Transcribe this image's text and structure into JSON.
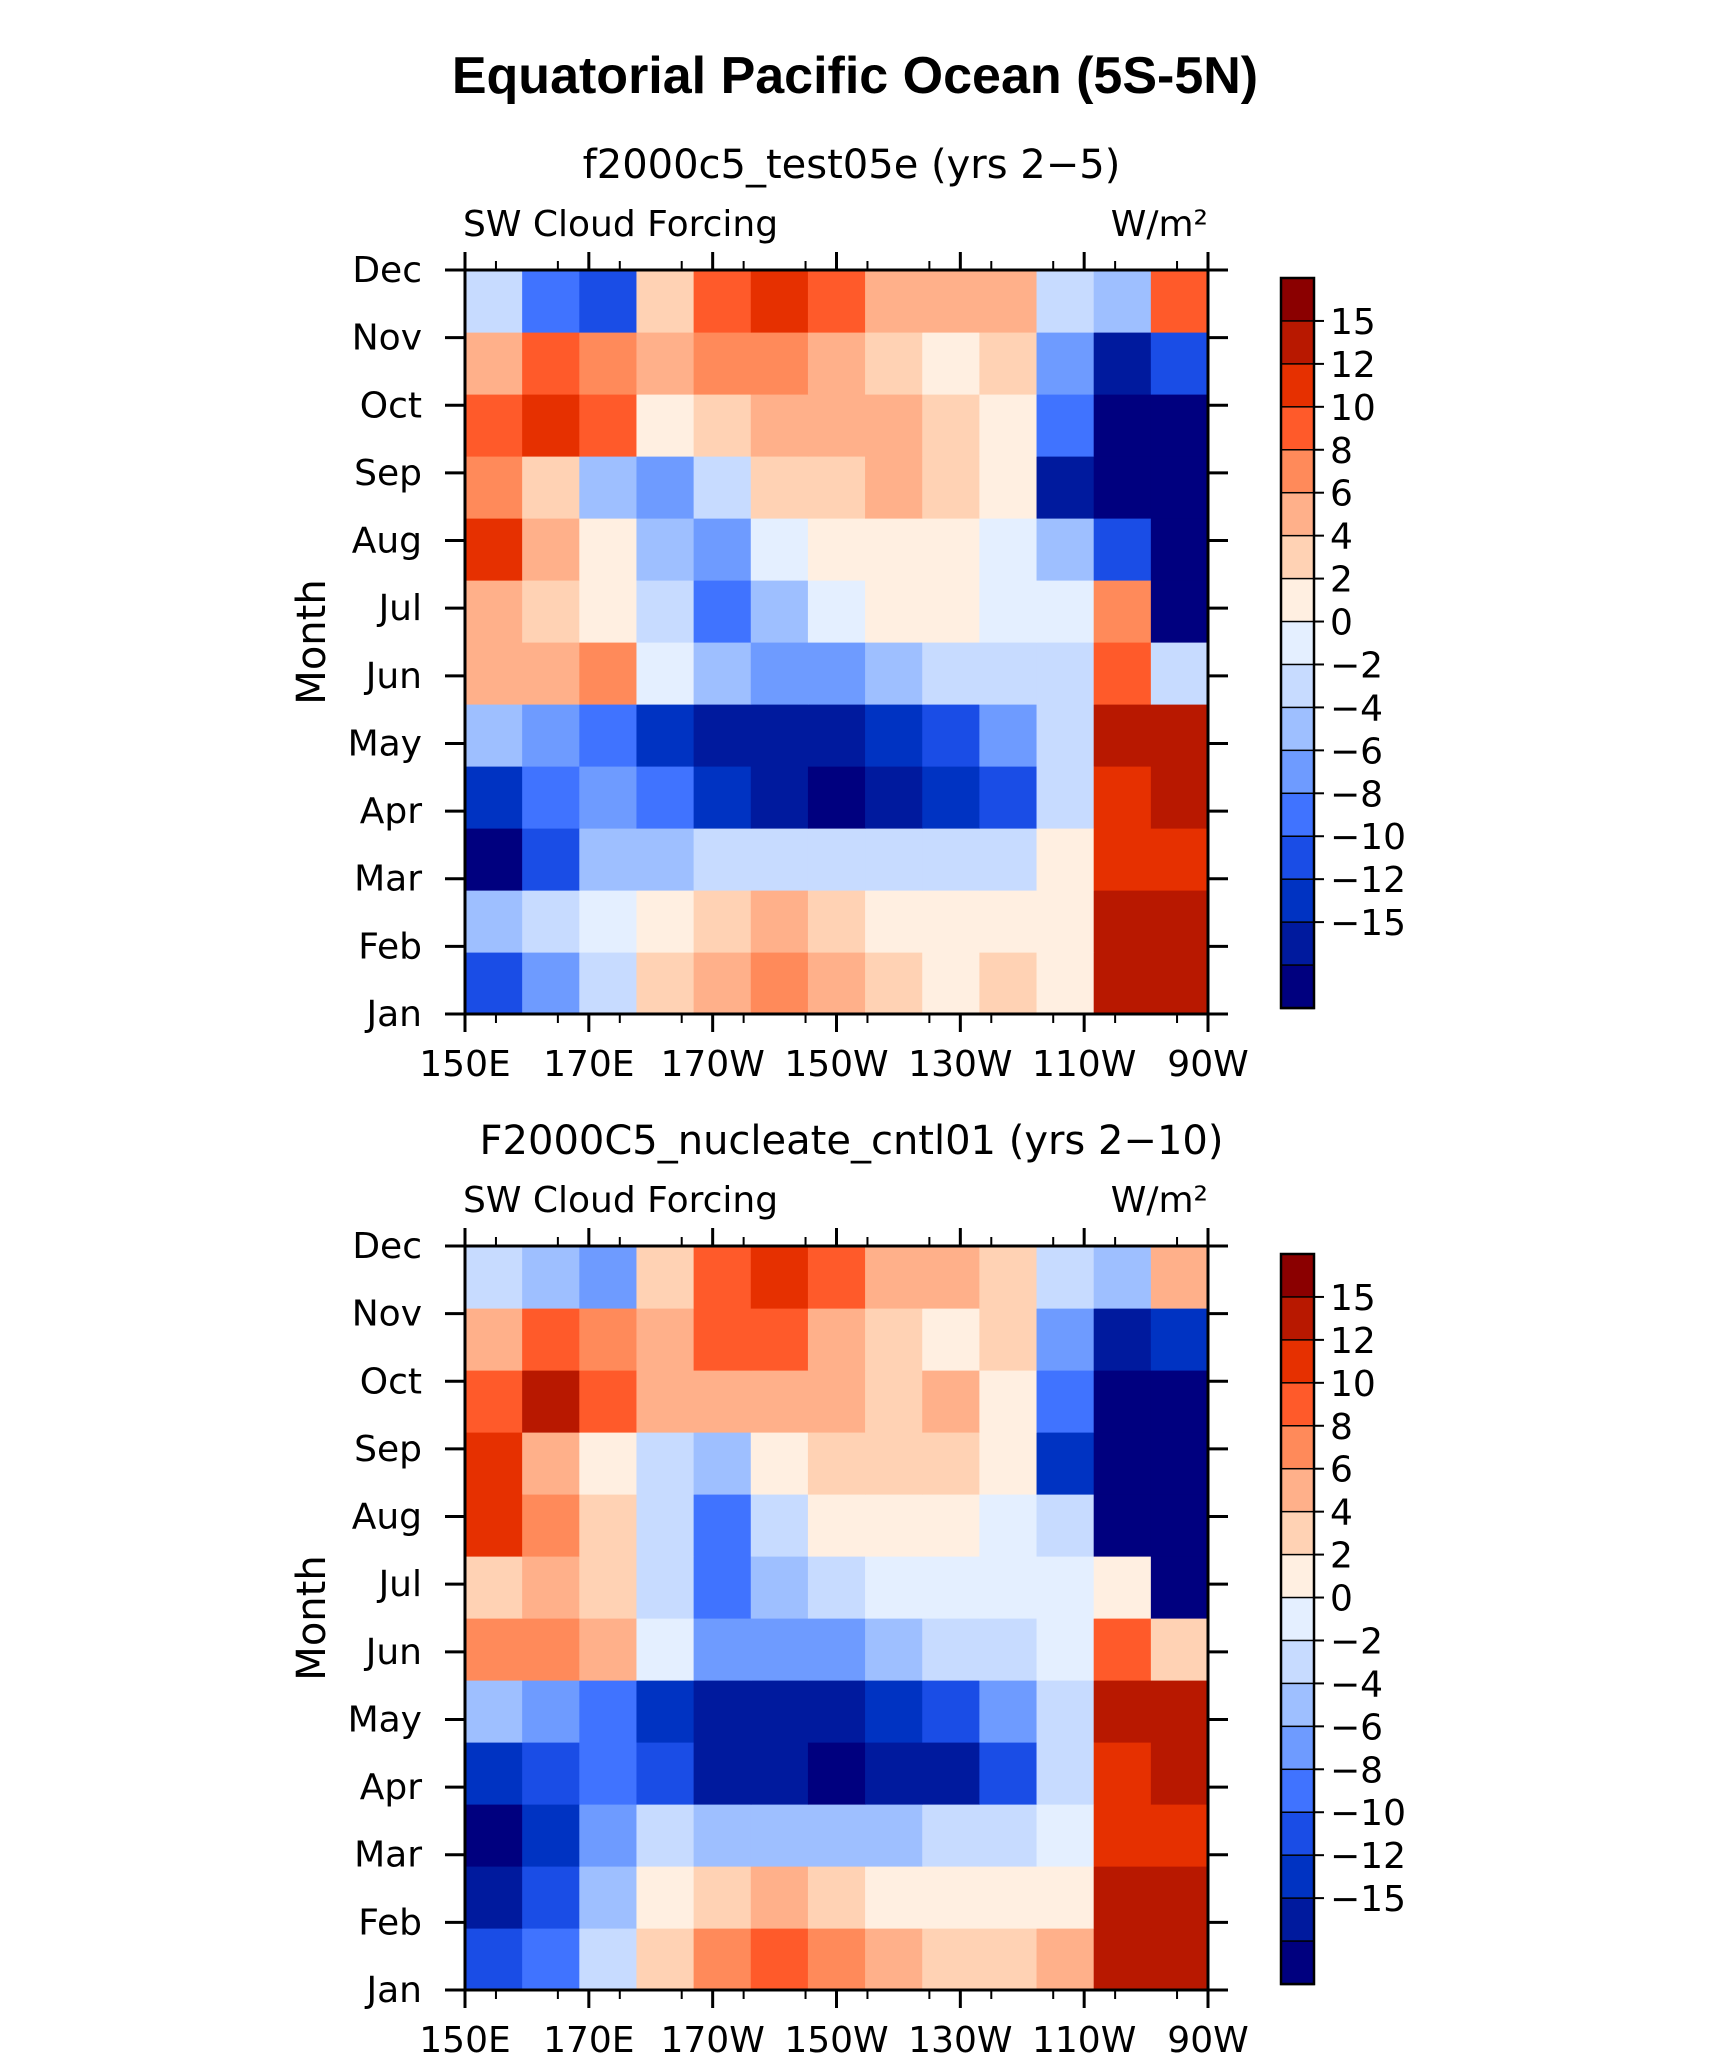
{
  "title": "Equatorial Pacific Ocean (5S-5N)",
  "colors": {
    "levels": [
      "#00007f",
      "#001a9e",
      "#0033c2",
      "#1a4de6",
      "#4073ff",
      "#6e9bff",
      "#9ebfff",
      "#c7dbff",
      "#e4efff",
      "#ffefe1",
      "#ffd2b4",
      "#ffb08a",
      "#ff8a5a",
      "#ff5a2a",
      "#e63000",
      "#b81800",
      "#8b0000"
    ]
  },
  "chart_data": [
    {
      "type": "heatmap",
      "title": "f2000c5_test05e (yrs 2−5)",
      "left_label": "SW Cloud Forcing",
      "right_label": "W/m²",
      "ylabel": "Month",
      "x_ticks": [
        "150E",
        "170E",
        "170W",
        "150W",
        "130W",
        "110W",
        "90W"
      ],
      "y_ticks": [
        "Jan",
        "Feb",
        "Mar",
        "Apr",
        "May",
        "Jun",
        "Jul",
        "Aug",
        "Sep",
        "Oct",
        "Nov",
        "Dec"
      ],
      "xlim": [
        150,
        270
      ],
      "colorbar_labels": [
        "15",
        "12",
        "10",
        "8",
        "6",
        "4",
        "2",
        "0",
        "−2",
        "−4",
        "−6",
        "−8",
        "−10",
        "−12",
        "−15"
      ],
      "values": [
        [
          -9,
          -6,
          -2,
          4,
          6,
          8,
          6,
          4,
          3,
          4,
          2,
          16,
          16
        ],
        [
          -3,
          -2,
          1,
          3,
          4,
          6,
          5,
          3,
          2,
          2,
          2,
          16,
          16
        ],
        [
          -16,
          -10,
          -4,
          -3,
          -2,
          -1,
          -2,
          -2,
          -2,
          -1,
          2,
          12,
          14
        ],
        [
          -12,
          -8,
          -6,
          -8,
          -12,
          -14,
          -16,
          -14,
          -12,
          -10,
          -1,
          14,
          16
        ],
        [
          -4,
          -5,
          -7,
          -11,
          -13,
          -15,
          -14,
          -12,
          -9,
          -5,
          -2,
          16,
          16
        ],
        [
          6,
          6,
          8,
          0,
          -4,
          -6,
          -6,
          -4,
          -2,
          -1,
          -1,
          10,
          -2
        ],
        [
          7,
          5,
          3,
          -2,
          -8,
          -4,
          1,
          2,
          2,
          1,
          1,
          8,
          -16
        ],
        [
          13,
          7,
          3,
          -3,
          -5,
          1,
          2,
          2,
          2,
          1,
          -3,
          -10,
          -16
        ],
        [
          8,
          4,
          -4,
          -6,
          -2,
          4,
          4,
          6,
          4,
          2,
          -14,
          -16,
          -16
        ],
        [
          10,
          13,
          10,
          3,
          4,
          6,
          7,
          6,
          4,
          2,
          -8,
          -16,
          -16
        ],
        [
          6,
          10,
          9,
          6,
          9,
          8,
          7,
          4,
          3,
          5,
          -6,
          -14,
          -10
        ],
        [
          -2,
          -8,
          -10,
          4,
          10,
          12,
          10,
          7,
          6,
          6,
          -2,
          -4,
          10
        ]
      ]
    },
    {
      "type": "heatmap",
      "title": "F2000C5_nucleate_cntl01 (yrs 2−10)",
      "left_label": "SW Cloud Forcing",
      "right_label": "W/m²",
      "ylabel": "Month",
      "x_ticks": [
        "150E",
        "170E",
        "170W",
        "150W",
        "130W",
        "110W",
        "90W"
      ],
      "y_ticks": [
        "Jan",
        "Feb",
        "Mar",
        "Apr",
        "May",
        "Jun",
        "Jul",
        "Aug",
        "Sep",
        "Oct",
        "Nov",
        "Dec"
      ],
      "xlim": [
        150,
        270
      ],
      "colorbar_labels": [
        "15",
        "12",
        "10",
        "8",
        "6",
        "4",
        "2",
        "0",
        "−2",
        "−4",
        "−6",
        "−8",
        "−10",
        "−12",
        "−15"
      ],
      "values": [
        [
          -10,
          -8,
          -2,
          4,
          8,
          10,
          8,
          6,
          4,
          4,
          6,
          16,
          16
        ],
        [
          -14,
          -10,
          -3,
          2,
          4,
          6,
          5,
          3,
          2,
          2,
          2,
          16,
          16
        ],
        [
          -16,
          -12,
          -6,
          -2,
          -3,
          -4,
          -4,
          -3,
          -2,
          -1,
          0,
          14,
          14
        ],
        [
          -12,
          -10,
          -8,
          -10,
          -13,
          -15,
          -16,
          -15,
          -13,
          -10,
          -1,
          12,
          16
        ],
        [
          -4,
          -5,
          -8,
          -12,
          -14,
          -14,
          -14,
          -12,
          -9,
          -5,
          -1,
          16,
          16
        ],
        [
          8,
          8,
          6,
          0,
          -5,
          -6,
          -5,
          -3,
          -1,
          -1,
          1,
          10,
          4
        ],
        [
          4,
          6,
          4,
          -2,
          -8,
          -4,
          -1,
          1,
          1,
          0,
          0,
          2,
          -16
        ],
        [
          14,
          8,
          4,
          -2,
          -8,
          -2,
          2,
          3,
          2,
          1,
          -1,
          -16,
          -16
        ],
        [
          12,
          6,
          2,
          -2,
          -4,
          2,
          4,
          5,
          4,
          2,
          -12,
          -16,
          -16
        ],
        [
          10,
          15,
          10,
          6,
          6,
          7,
          6,
          5,
          6,
          3,
          -8,
          -16,
          -16
        ],
        [
          6,
          10,
          8,
          6,
          10,
          10,
          6,
          4,
          3,
          4,
          -6,
          -14,
          -12
        ],
        [
          -2,
          -4,
          -6,
          4,
          10,
          12,
          10,
          7,
          6,
          4,
          -2,
          -4,
          6
        ]
      ]
    }
  ]
}
